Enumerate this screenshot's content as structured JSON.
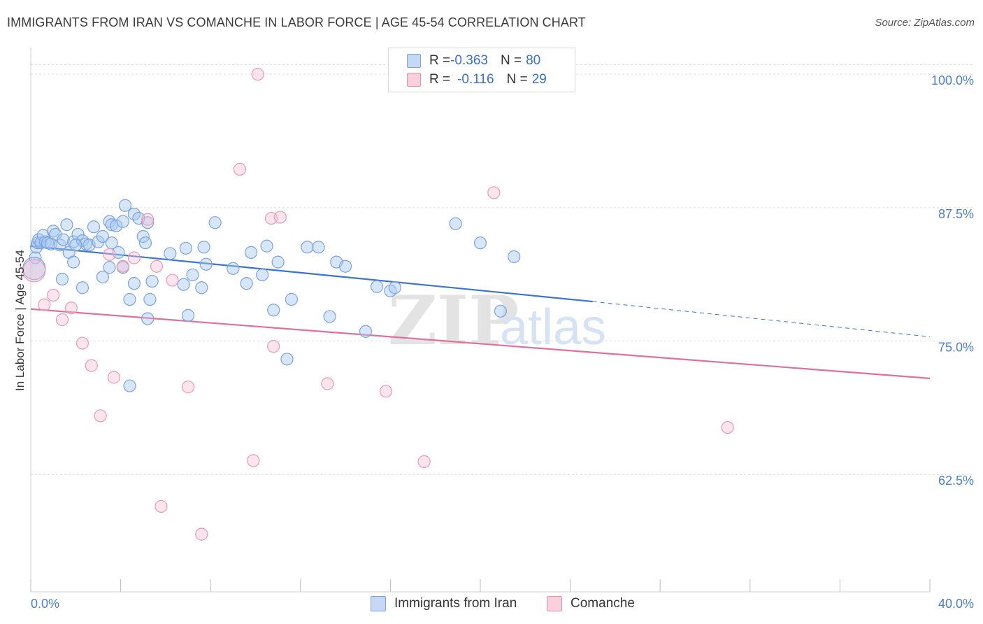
{
  "header": {
    "title": "IMMIGRANTS FROM IRAN VS COMANCHE IN LABOR FORCE | AGE 45-54 CORRELATION CHART",
    "source": "Source: ZipAtlas.com"
  },
  "legend": {
    "series1": {
      "r_label": "R = ",
      "r_value": "-0.363",
      "n_label": "N = ",
      "n_value": "80"
    },
    "series2": {
      "r_label": "R = ",
      "r_value": "-0.116",
      "n_label": "N = ",
      "n_value": "29"
    }
  },
  "watermark": {
    "zip": "ZIP",
    "atlas": "atlas"
  },
  "colors": {
    "blue": "#6f9ee8",
    "blue_line": "#3a74d2",
    "pink": "#ee9ab4",
    "pink_line": "#e0709a"
  },
  "chart_data": {
    "type": "scatter",
    "xlabel": "",
    "ylabel": "In Labor Force | Age 45-54",
    "xlim": [
      0,
      40
    ],
    "ylim": [
      51.5,
      102.5
    ],
    "x_tick_labels": [
      "0.0%",
      "40.0%"
    ],
    "y_ticks": [
      62.5,
      75.0,
      87.5,
      100.0
    ],
    "y_tick_labels": [
      "62.5%",
      "75.0%",
      "87.5%",
      "100.0%"
    ],
    "grid": true,
    "legend_position": "top-center",
    "series": [
      {
        "name": "Immigrants from Iran",
        "color": "#6f9ee8",
        "trend": {
          "x0": 0.0,
          "y0": 83.9,
          "x1": 25.0,
          "y1": 78.7,
          "dashed_to_x": 40.0,
          "dashed_to_y": 75.4
        },
        "points": [
          [
            0.2,
            82.8
          ],
          [
            0.25,
            83.8
          ],
          [
            0.3,
            84.2
          ],
          [
            0.35,
            84.5
          ],
          [
            0.45,
            84.2
          ],
          [
            0.55,
            84.9
          ],
          [
            0.65,
            84.3
          ],
          [
            0.75,
            84.2
          ],
          [
            0.9,
            84.1
          ],
          [
            1.0,
            85.3
          ],
          [
            1.1,
            85.0
          ],
          [
            1.3,
            84.0
          ],
          [
            1.45,
            84.5
          ],
          [
            1.6,
            85.9
          ],
          [
            1.7,
            83.3
          ],
          [
            1.9,
            84.3
          ],
          [
            2.1,
            85.0
          ],
          [
            2.3,
            84.4
          ],
          [
            2.45,
            84.1
          ],
          [
            2.6,
            84.0
          ],
          [
            2.8,
            85.7
          ],
          [
            3.0,
            84.3
          ],
          [
            3.2,
            84.8
          ],
          [
            3.5,
            86.2
          ],
          [
            3.6,
            85.9
          ],
          [
            3.8,
            85.8
          ],
          [
            4.1,
            86.2
          ],
          [
            4.2,
            87.7
          ],
          [
            4.6,
            86.9
          ],
          [
            4.8,
            86.5
          ],
          [
            5.2,
            86.1
          ],
          [
            5.0,
            84.8
          ],
          [
            5.1,
            84.2
          ],
          [
            3.9,
            83.3
          ],
          [
            3.5,
            81.9
          ],
          [
            4.1,
            81.9
          ],
          [
            6.2,
            83.2
          ],
          [
            6.9,
            83.7
          ],
          [
            7.7,
            83.8
          ],
          [
            8.2,
            86.1
          ],
          [
            7.8,
            82.2
          ],
          [
            7.2,
            81.2
          ],
          [
            6.8,
            80.3
          ],
          [
            7.6,
            80.0
          ],
          [
            9.0,
            81.8
          ],
          [
            9.6,
            80.4
          ],
          [
            9.8,
            83.3
          ],
          [
            10.3,
            81.2
          ],
          [
            10.5,
            83.9
          ],
          [
            11.0,
            82.4
          ],
          [
            1.4,
            80.8
          ],
          [
            2.3,
            80.0
          ],
          [
            3.2,
            81.0
          ],
          [
            4.6,
            80.4
          ],
          [
            5.4,
            80.6
          ],
          [
            4.4,
            78.9
          ],
          [
            5.3,
            78.9
          ],
          [
            5.2,
            77.1
          ],
          [
            7.0,
            77.4
          ],
          [
            10.8,
            77.9
          ],
          [
            11.6,
            78.9
          ],
          [
            12.3,
            83.8
          ],
          [
            12.8,
            83.8
          ],
          [
            13.3,
            77.3
          ],
          [
            13.6,
            82.4
          ],
          [
            14.0,
            82.0
          ],
          [
            15.4,
            80.1
          ],
          [
            16.0,
            79.7
          ],
          [
            16.2,
            80.0
          ],
          [
            18.9,
            86.0
          ],
          [
            20.0,
            84.2
          ],
          [
            21.5,
            82.9
          ],
          [
            20.9,
            77.8
          ],
          [
            14.9,
            75.9
          ],
          [
            11.4,
            73.3
          ],
          [
            4.4,
            70.8
          ],
          [
            1.9,
            82.4
          ],
          [
            0.15,
            81.8
          ],
          [
            2.0,
            84.0
          ],
          [
            3.6,
            84.2
          ]
        ]
      },
      {
        "name": "Comanche",
        "color": "#ee9ab4",
        "trend": {
          "x0": 0.0,
          "y0": 78.0,
          "x1": 40.0,
          "y1": 71.5
        },
        "points": [
          [
            0.15,
            81.6
          ],
          [
            0.6,
            78.4
          ],
          [
            1.0,
            79.3
          ],
          [
            1.4,
            77.0
          ],
          [
            1.8,
            78.1
          ],
          [
            2.3,
            74.8
          ],
          [
            2.7,
            72.7
          ],
          [
            3.1,
            68.0
          ],
          [
            3.5,
            83.1
          ],
          [
            3.7,
            71.6
          ],
          [
            4.1,
            82.0
          ],
          [
            4.6,
            82.8
          ],
          [
            5.2,
            86.4
          ],
          [
            5.6,
            82.0
          ],
          [
            6.3,
            80.7
          ],
          [
            5.8,
            59.5
          ],
          [
            7.0,
            70.7
          ],
          [
            7.6,
            56.9
          ],
          [
            10.1,
            100.0
          ],
          [
            9.3,
            91.1
          ],
          [
            10.7,
            86.5
          ],
          [
            11.1,
            86.6
          ],
          [
            10.8,
            74.5
          ],
          [
            9.9,
            63.8
          ],
          [
            13.2,
            71.0
          ],
          [
            15.8,
            70.3
          ],
          [
            17.5,
            63.7
          ],
          [
            20.6,
            88.9
          ],
          [
            31.0,
            66.9
          ]
        ]
      }
    ]
  },
  "bottom_legend": {
    "item1": "Immigrants from Iran",
    "item2": "Comanche"
  }
}
